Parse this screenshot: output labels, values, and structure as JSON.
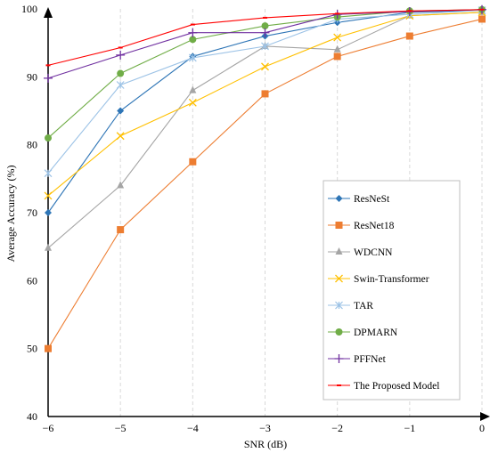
{
  "chart_data": {
    "type": "line",
    "title": "",
    "xlabel": "SNR (dB)",
    "ylabel": "Average Accuracy (%)",
    "x": [
      -6,
      -5,
      -4,
      -3,
      -2,
      -1,
      0
    ],
    "xlim": [
      -6,
      0
    ],
    "ylim": [
      40,
      100
    ],
    "xticks": [
      "−6",
      "−5",
      "−4",
      "−3",
      "−2",
      "−1",
      "0"
    ],
    "yticks": [
      "40",
      "50",
      "60",
      "70",
      "80",
      "90",
      "100"
    ],
    "grid": "vertical-dashed",
    "legend_position": "bottom-right",
    "series": [
      {
        "name": "ResNeSt",
        "color": "#2e75b6",
        "marker": "diamond",
        "values": [
          70.0,
          85.0,
          93.0,
          96.0,
          98.0,
          99.5,
          99.8
        ]
      },
      {
        "name": "ResNet18",
        "color": "#ed7d31",
        "marker": "square",
        "values": [
          50.0,
          67.5,
          77.5,
          87.5,
          93.0,
          96.0,
          98.5
        ]
      },
      {
        "name": "WDCNN",
        "color": "#a5a5a5",
        "marker": "triangle",
        "values": [
          64.8,
          74.0,
          88.0,
          94.5,
          94.0,
          99.0,
          99.5
        ]
      },
      {
        "name": "Swin-Transformer",
        "color": "#ffc000",
        "marker": "x",
        "values": [
          72.5,
          81.3,
          86.2,
          91.5,
          95.8,
          99.0,
          99.5
        ]
      },
      {
        "name": "TAR",
        "color": "#9dc3e6",
        "marker": "star",
        "values": [
          75.8,
          88.8,
          92.8,
          94.5,
          98.5,
          99.2,
          99.8
        ]
      },
      {
        "name": "DPMARN",
        "color": "#70ad47",
        "marker": "circle",
        "values": [
          81.0,
          90.5,
          95.5,
          97.5,
          98.8,
          99.7,
          99.9
        ]
      },
      {
        "name": "PFFNet",
        "color": "#7030a0",
        "marker": "plus",
        "values": [
          89.8,
          93.2,
          96.5,
          96.5,
          99.2,
          99.6,
          99.9
        ]
      },
      {
        "name": "The Proposed Model",
        "color": "#ff0000",
        "marker": "dash",
        "values": [
          91.7,
          94.3,
          97.7,
          98.7,
          99.3,
          99.7,
          99.9
        ]
      }
    ]
  }
}
